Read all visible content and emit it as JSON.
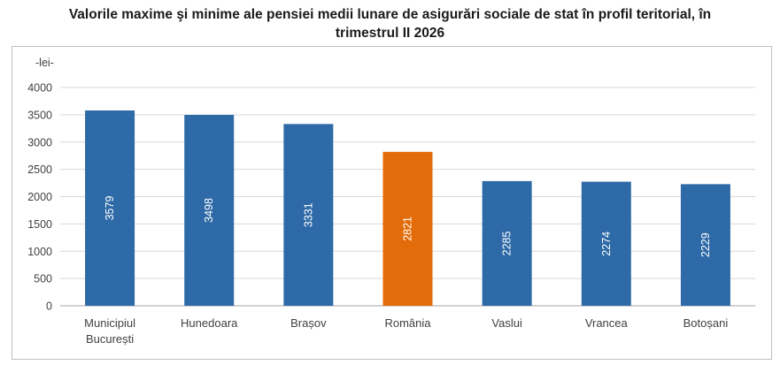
{
  "title": {
    "line1": "Valorile maxime şi minime ale pensiei medii lunare de asigurări sociale de stat în profil teritorial, în",
    "line2": "trimestrul II 2026"
  },
  "colors": {
    "bar": "#2e6aa7",
    "highlight": "#e36c0a",
    "grid": "#d9d9d9",
    "axis": "#a6a6a6"
  },
  "chart_data": {
    "type": "bar",
    "unit_label": "-lei-",
    "categories": [
      [
        "Municipiul",
        "București"
      ],
      [
        "Hunedoara"
      ],
      [
        "Brașov"
      ],
      [
        "România"
      ],
      [
        "Vaslui"
      ],
      [
        "Vrancea"
      ],
      [
        "Botoșani"
      ]
    ],
    "values": [
      3579,
      3498,
      3331,
      2821,
      2285,
      2274,
      2229
    ],
    "highlight_index": 3,
    "ylim": [
      0,
      4000
    ],
    "yticks": [
      0,
      500,
      1000,
      1500,
      2000,
      2500,
      3000,
      3500,
      4000
    ],
    "grid": true,
    "data_labels": "inside-rotated"
  }
}
